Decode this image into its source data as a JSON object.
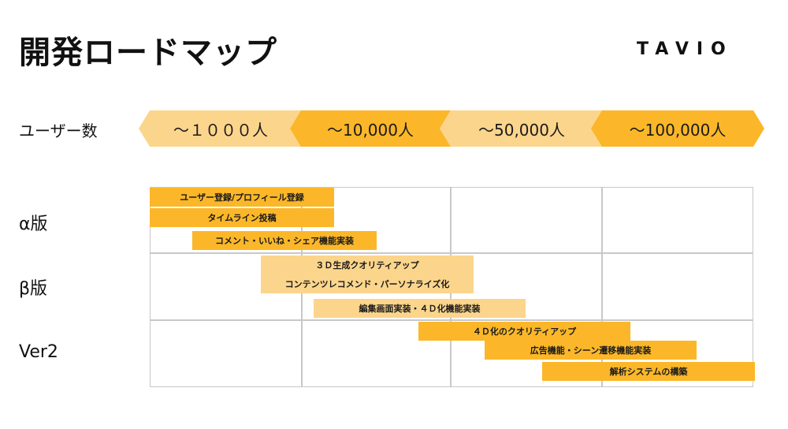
{
  "header": {
    "title": "開発ロードマップ",
    "brand": "TAVIO"
  },
  "users": {
    "label": "ユーザー数",
    "stages": [
      "～１０００人",
      "～10,000人",
      "～50,000人",
      "～100,000人"
    ]
  },
  "rows": [
    {
      "label": "α版"
    },
    {
      "label": "β版"
    },
    {
      "label": "Ver2"
    }
  ],
  "tasks": [
    {
      "label": "ユーザー登録/プロフィール登録",
      "tone": "dark"
    },
    {
      "label": "タイムライン投稿",
      "tone": "dark"
    },
    {
      "label": "コメント・いいね・シェア機能実装",
      "tone": "dark"
    },
    {
      "label": "３Ｄ生成クオリティアップ",
      "tone": "light"
    },
    {
      "label": "コンテンツレコメンド・パーソナライズ化",
      "tone": "light"
    },
    {
      "label": "編集画面実装・４Ｄ化機能実装",
      "tone": "light"
    },
    {
      "label": "４Ｄ化のクオリティアップ",
      "tone": "dark"
    },
    {
      "label": "広告機能・シーン遷移機能実装",
      "tone": "dark"
    },
    {
      "label": "解析システムの構築",
      "tone": "dark"
    }
  ],
  "colors": {
    "dark": "#fbb729",
    "light": "#fcd58c",
    "grid": "#c8c8c8"
  }
}
